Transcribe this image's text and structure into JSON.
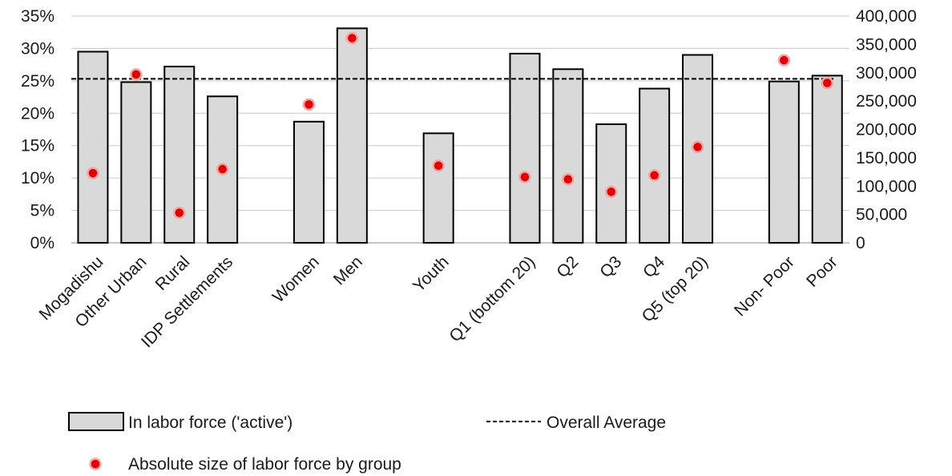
{
  "chart_data": {
    "type": "bar",
    "categories": [
      "Mogadishu",
      "Other Urban",
      "Rural",
      "IDP Settlements",
      "",
      "Women",
      "Men",
      "",
      "Youth",
      "",
      "Q1 (bottom 20)",
      "Q2",
      "Q3",
      "Q4",
      "Q5 (top 20)",
      "",
      "Non- Poor",
      "Poor"
    ],
    "series": [
      {
        "name": "In labor force ('active')",
        "kind": "bar",
        "axis": "left",
        "color": "#d9d9d9",
        "values": [
          29.5,
          24.8,
          27.2,
          22.6,
          null,
          18.7,
          33.1,
          null,
          16.9,
          null,
          29.2,
          26.8,
          18.3,
          23.8,
          29.0,
          null,
          24.9,
          25.8
        ]
      },
      {
        "name": "Absolute size of labor force by group",
        "kind": "point",
        "axis": "right",
        "color": "#e00000",
        "values": [
          123000,
          297000,
          53000,
          130000,
          null,
          244000,
          361000,
          null,
          136000,
          null,
          116000,
          112000,
          90000,
          119000,
          169000,
          null,
          322000,
          282000
        ]
      },
      {
        "name": "Overall Average",
        "kind": "reference-line",
        "axis": "left",
        "value": 25.3
      }
    ],
    "y_left": {
      "ylim": [
        0,
        35
      ],
      "ticks": [
        "0%",
        "5%",
        "10%",
        "15%",
        "20%",
        "25%",
        "30%",
        "35%"
      ]
    },
    "y_right": {
      "ylim": [
        0,
        400000
      ],
      "ticks": [
        "0",
        "50,000",
        "100,000",
        "150,000",
        "200,000",
        "250,000",
        "300,000",
        "350,000",
        "400,000"
      ]
    },
    "grid": true,
    "legend": {
      "placement": "bottom",
      "items": [
        {
          "label": "In labor force ('active')",
          "symbol": "bar"
        },
        {
          "label": "Overall Average",
          "symbol": "dashed-line"
        },
        {
          "label": "Absolute size of labor force by group",
          "symbol": "dot"
        }
      ]
    }
  }
}
